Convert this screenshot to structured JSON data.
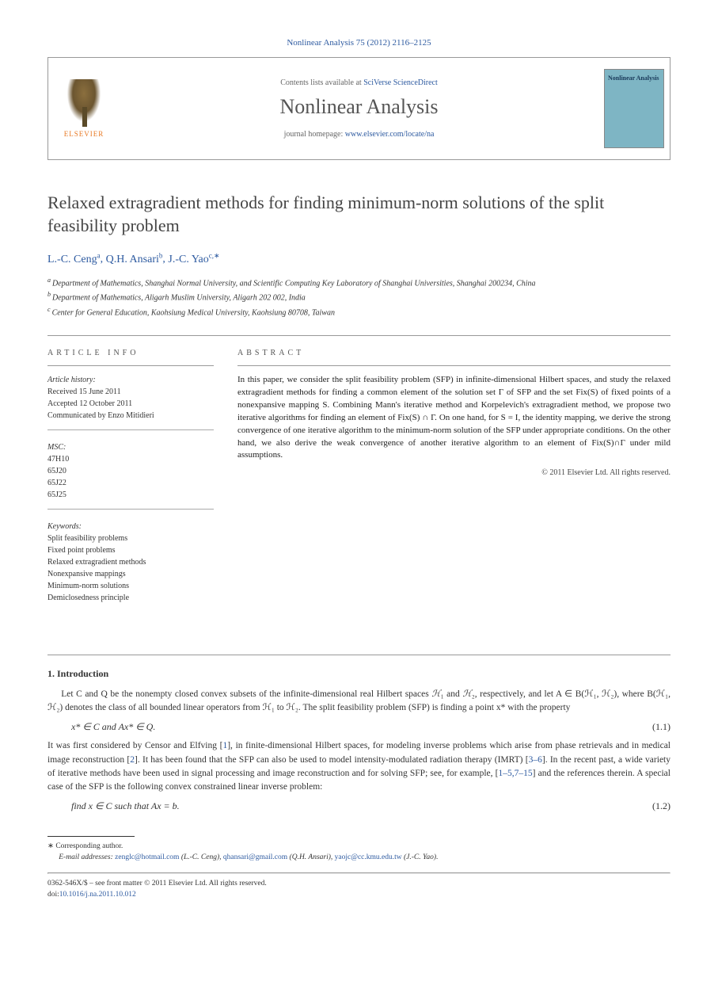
{
  "header": {
    "citation": "Nonlinear Analysis 75 (2012) 2116–2125",
    "contents_prefix": "Contents lists available at ",
    "contents_link": "SciVerse ScienceDirect",
    "journal": "Nonlinear Analysis",
    "homepage_prefix": "journal homepage: ",
    "homepage_link": "www.elsevier.com/locate/na",
    "elsevier": "ELSEVIER",
    "thumb_title": "Nonlinear Analysis"
  },
  "title": "Relaxed extragradient methods for finding minimum-norm solutions of the split feasibility problem",
  "authors": [
    {
      "name": "L.-C. Ceng",
      "aff": "a"
    },
    {
      "name": "Q.H. Ansari",
      "aff": "b"
    },
    {
      "name": "J.-C. Yao",
      "aff": "c,∗"
    }
  ],
  "affiliations": [
    {
      "sup": "a",
      "text": "Department of Mathematics, Shanghai Normal University, and Scientific Computing Key Laboratory of Shanghai Universities, Shanghai 200234, China"
    },
    {
      "sup": "b",
      "text": "Department of Mathematics, Aligarh Muslim University, Aligarh 202 002, India"
    },
    {
      "sup": "c",
      "text": "Center for General Education, Kaohsiung Medical University, Kaohsiung 80708, Taiwan"
    }
  ],
  "info": {
    "head": "ARTICLE INFO",
    "history_label": "Article history:",
    "received": "Received 15 June 2011",
    "accepted": "Accepted 12 October 2011",
    "communicated": "Communicated by Enzo Mitidieri",
    "msc_label": "MSC:",
    "msc": [
      "47H10",
      "65J20",
      "65J22",
      "65J25"
    ],
    "keywords_label": "Keywords:",
    "keywords": [
      "Split feasibility problems",
      "Fixed point problems",
      "Relaxed extragradient methods",
      "Nonexpansive mappings",
      "Minimum-norm solutions",
      "Demiclosedness principle"
    ]
  },
  "abstract": {
    "head": "ABSTRACT",
    "text": "In this paper, we consider the split feasibility problem (SFP) in infinite-dimensional Hilbert spaces, and study the relaxed extragradient methods for finding a common element of the solution set Γ of SFP and the set Fix(S) of fixed points of a nonexpansive mapping S. Combining Mann's iterative method and Korpelevich's extragradient method, we propose two iterative algorithms for finding an element of Fix(S) ∩ Γ. On one hand, for S = I, the identity mapping, we derive the strong convergence of one iterative algorithm to the minimum-norm solution of the SFP under appropriate conditions. On the other hand, we also derive the weak convergence of another iterative algorithm to an element of Fix(S)∩Γ under mild assumptions.",
    "copyright": "© 2011 Elsevier Ltd. All rights reserved."
  },
  "section1": {
    "title": "1.  Introduction",
    "p1_a": "Let C and Q be the nonempty closed convex subsets of the infinite-dimensional real Hilbert spaces ",
    "p1_b": " and ",
    "p1_c": ", respectively, and let A ∈ B(ℋ₁, ℋ₂), where B(ℋ₁, ℋ₂) denotes the class of all bounded linear operators from ℋ₁ to ℋ₂. The split feasibility problem (SFP) is finding a point x* with the property",
    "eq1": "x* ∈ C   and   Ax* ∈ Q.",
    "eq1_num": "(1.1)",
    "p2_a": "It was first considered by Censor and Elfving [",
    "p2_ref1": "1",
    "p2_b": "], in finite-dimensional Hilbert spaces, for modeling inverse problems which arise from phase retrievals and in medical image reconstruction [",
    "p2_ref2": "2",
    "p2_c": "]. It has been found that the SFP can also be used to model intensity-modulated radiation therapy (IMRT) [",
    "p2_ref3": "3–6",
    "p2_d": "]. In the recent past, a wide variety of iterative methods have been used in signal processing and image reconstruction and for solving SFP; see, for example, [",
    "p2_ref4": "1–5,7–15",
    "p2_e": "] and the references therein. A special case of the SFP is the following convex constrained linear inverse problem:",
    "eq2": "find x ∈ C   such that Ax = b.",
    "eq2_num": "(1.2)"
  },
  "footer": {
    "corresponding": "∗ Corresponding author.",
    "email_label": "E-mail addresses: ",
    "emails": [
      {
        "addr": "zenglc@hotmail.com",
        "who": " (L.-C. Ceng), "
      },
      {
        "addr": "qhansari@gmail.com",
        "who": " (Q.H. Ansari), "
      },
      {
        "addr": "yaojc@cc.kmu.edu.tw",
        "who": " (J.-C. Yao)."
      }
    ],
    "issn_line": "0362-546X/$ – see front matter © 2011 Elsevier Ltd. All rights reserved.",
    "doi_label": "doi:",
    "doi": "10.1016/j.na.2011.10.012"
  },
  "colors": {
    "link": "#2d5aa0",
    "elsevier_orange": "#e87722",
    "thumb_bg": "#7eb5c4"
  }
}
